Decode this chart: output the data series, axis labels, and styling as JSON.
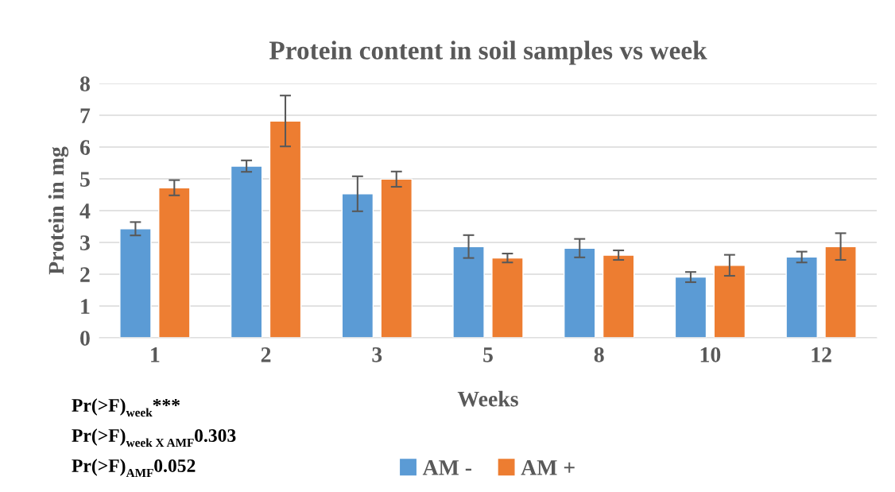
{
  "chart_data": {
    "type": "bar",
    "title": "Protein content in soil samples vs week",
    "xlabel": "Weeks",
    "ylabel": "Protein in mg",
    "categories": [
      "1",
      "2",
      "3",
      "5",
      "8",
      "10",
      "12"
    ],
    "series": [
      {
        "name": "AM -",
        "color": "#5b9bd5",
        "values": [
          3.43,
          5.4,
          4.53,
          2.87,
          2.82,
          1.91,
          2.54
        ],
        "errors": [
          0.21,
          0.18,
          0.55,
          0.36,
          0.29,
          0.16,
          0.17
        ]
      },
      {
        "name": "AM +",
        "color": "#ed7d31",
        "values": [
          4.72,
          6.82,
          4.99,
          2.51,
          2.6,
          2.28,
          2.87
        ],
        "errors": [
          0.24,
          0.8,
          0.24,
          0.14,
          0.15,
          0.33,
          0.42
        ]
      }
    ],
    "ylim": [
      0,
      8
    ],
    "yticks": [
      0,
      1,
      2,
      3,
      4,
      5,
      6,
      7,
      8
    ],
    "grid": "y",
    "legend": "bottom",
    "annotations": [
      "Pr(>F)$_{week}$***",
      "Pr(>F)$_{week X AMF}$0.303",
      "Pr(>F)$_{AMF}$0.052"
    ]
  }
}
